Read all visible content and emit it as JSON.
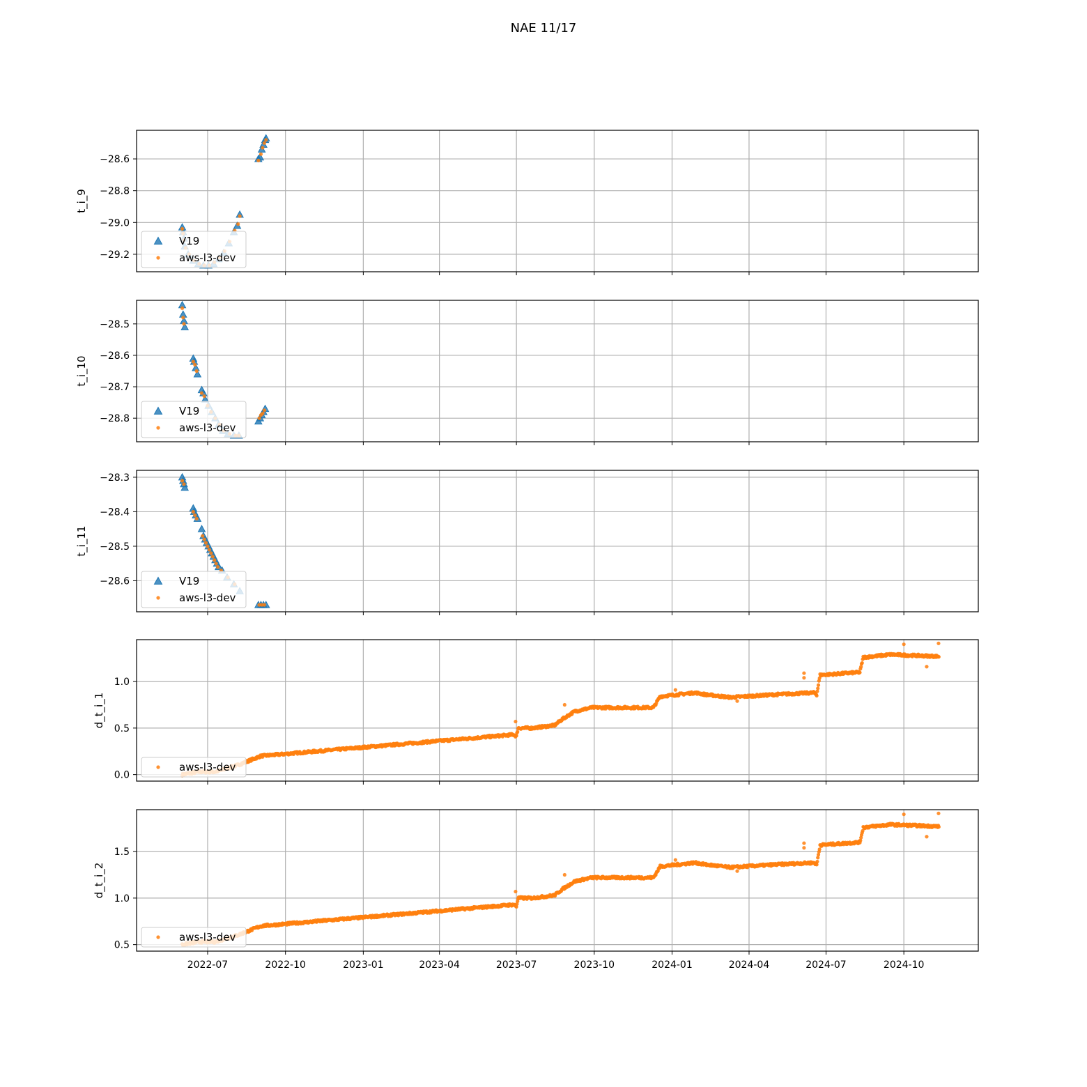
{
  "figure_title": "NAE 11/17",
  "colors": {
    "v19": "#1f77b4",
    "dev": "#ff7f0e",
    "grid": "#b0b0b0"
  },
  "chart_data": [
    {
      "type": "scatter",
      "ylabel": "t_i_9",
      "ylim": [
        -29.31,
        -28.42
      ],
      "yticks": [
        -29.2,
        -29.0,
        -28.8,
        -28.6
      ],
      "ytick_labels": [
        "−29.2",
        "−29.0",
        "−28.8",
        "−28.6"
      ],
      "legend": [
        "V19",
        "aws-l3-dev"
      ],
      "legend_loc": "lower left",
      "series": [
        {
          "name": "V19",
          "marker": "triangle",
          "points": [
            [
              "2022-06-01",
              -29.03
            ],
            [
              "2022-06-02",
              -29.06
            ],
            [
              "2022-06-03",
              -29.1
            ],
            [
              "2022-06-04",
              -29.15
            ],
            [
              "2022-06-08",
              -29.2
            ],
            [
              "2022-06-14",
              -29.24
            ],
            [
              "2022-06-20",
              -29.26
            ],
            [
              "2022-06-26",
              -29.27
            ],
            [
              "2022-07-02",
              -29.27
            ],
            [
              "2022-07-08",
              -29.26
            ],
            [
              "2022-07-14",
              -29.23
            ],
            [
              "2022-07-20",
              -29.19
            ],
            [
              "2022-07-26",
              -29.13
            ],
            [
              "2022-08-01",
              -29.06
            ],
            [
              "2022-08-05",
              -29.02
            ],
            [
              "2022-08-08",
              -28.95
            ],
            [
              "2022-08-30",
              -28.6
            ],
            [
              "2022-09-01",
              -28.59
            ],
            [
              "2022-09-03",
              -28.54
            ],
            [
              "2022-09-05",
              -28.51
            ],
            [
              "2022-09-07",
              -28.48
            ],
            [
              "2022-09-08",
              -28.47
            ]
          ]
        },
        {
          "name": "aws-l3-dev",
          "marker": "dot",
          "points": [
            [
              "2022-06-01",
              -29.04
            ],
            [
              "2022-06-02",
              -29.07
            ],
            [
              "2022-06-03",
              -29.11
            ],
            [
              "2022-06-05",
              -29.16
            ],
            [
              "2022-06-09",
              -29.2
            ],
            [
              "2022-06-15",
              -29.24
            ],
            [
              "2022-06-21",
              -29.26
            ],
            [
              "2022-06-27",
              -29.27
            ],
            [
              "2022-07-03",
              -29.27
            ],
            [
              "2022-07-09",
              -29.25
            ],
            [
              "2022-07-15",
              -29.22
            ],
            [
              "2022-07-21",
              -29.18
            ],
            [
              "2022-07-27",
              -29.12
            ],
            [
              "2022-08-02",
              -29.05
            ],
            [
              "2022-08-06",
              -29.01
            ],
            [
              "2022-08-08",
              -28.96
            ],
            [
              "2022-08-30",
              -28.61
            ],
            [
              "2022-09-02",
              -28.57
            ],
            [
              "2022-09-04",
              -28.53
            ],
            [
              "2022-09-06",
              -28.5
            ],
            [
              "2022-09-08",
              -28.48
            ]
          ]
        }
      ]
    },
    {
      "type": "scatter",
      "ylabel": "t_i_10",
      "ylim": [
        -28.875,
        -28.425
      ],
      "yticks": [
        -28.8,
        -28.7,
        -28.6,
        -28.5
      ],
      "ytick_labels": [
        "−28.8",
        "−28.7",
        "−28.6",
        "−28.5"
      ],
      "legend": [
        "V19",
        "aws-l3-dev"
      ],
      "legend_loc": "lower left",
      "series": [
        {
          "name": "V19",
          "marker": "triangle",
          "points": [
            [
              "2022-06-01",
              -28.44
            ],
            [
              "2022-06-02",
              -28.47
            ],
            [
              "2022-06-03",
              -28.49
            ],
            [
              "2022-06-04",
              -28.51
            ],
            [
              "2022-06-14",
              -28.61
            ],
            [
              "2022-06-15",
              -28.62
            ],
            [
              "2022-06-17",
              -28.64
            ],
            [
              "2022-06-19",
              -28.66
            ],
            [
              "2022-06-24",
              -28.71
            ],
            [
              "2022-06-26",
              -28.72
            ],
            [
              "2022-06-28",
              -28.74
            ],
            [
              "2022-07-02",
              -28.76
            ],
            [
              "2022-07-06",
              -28.78
            ],
            [
              "2022-07-10",
              -28.8
            ],
            [
              "2022-07-14",
              -28.82
            ],
            [
              "2022-07-19",
              -28.84
            ],
            [
              "2022-07-25",
              -28.85
            ],
            [
              "2022-08-01",
              -28.855
            ],
            [
              "2022-08-07",
              -28.855
            ],
            [
              "2022-08-30",
              -28.81
            ],
            [
              "2022-09-01",
              -28.8
            ],
            [
              "2022-09-03",
              -28.79
            ],
            [
              "2022-09-05",
              -28.78
            ],
            [
              "2022-09-07",
              -28.77
            ]
          ]
        },
        {
          "name": "aws-l3-dev",
          "marker": "dot",
          "points": [
            [
              "2022-06-01",
              -28.45
            ],
            [
              "2022-06-02",
              -28.48
            ],
            [
              "2022-06-03",
              -28.5
            ],
            [
              "2022-06-14",
              -28.62
            ],
            [
              "2022-06-16",
              -28.63
            ],
            [
              "2022-06-18",
              -28.65
            ],
            [
              "2022-06-24",
              -28.72
            ],
            [
              "2022-06-27",
              -28.73
            ],
            [
              "2022-07-01",
              -28.76
            ],
            [
              "2022-07-05",
              -28.78
            ],
            [
              "2022-07-10",
              -28.8
            ],
            [
              "2022-07-15",
              -28.82
            ],
            [
              "2022-07-20",
              -28.84
            ],
            [
              "2022-07-27",
              -28.85
            ],
            [
              "2022-08-03",
              -28.855
            ],
            [
              "2022-08-07",
              -28.855
            ],
            [
              "2022-08-31",
              -28.8
            ],
            [
              "2022-09-02",
              -28.79
            ],
            [
              "2022-09-04",
              -28.785
            ],
            [
              "2022-09-06",
              -28.775
            ]
          ]
        }
      ]
    },
    {
      "type": "scatter",
      "ylabel": "t_i_11",
      "ylim": [
        -28.69,
        -28.28
      ],
      "yticks": [
        -28.6,
        -28.5,
        -28.4,
        -28.3
      ],
      "ytick_labels": [
        "−28.6",
        "−28.5",
        "−28.4",
        "−28.3"
      ],
      "legend": [
        "V19",
        "aws-l3-dev"
      ],
      "legend_loc": "lower left",
      "series": [
        {
          "name": "V19",
          "marker": "triangle",
          "points": [
            [
              "2022-06-01",
              -28.3
            ],
            [
              "2022-06-02",
              -28.31
            ],
            [
              "2022-06-03",
              -28.32
            ],
            [
              "2022-06-04",
              -28.33
            ],
            [
              "2022-06-14",
              -28.39
            ],
            [
              "2022-06-15",
              -28.4
            ],
            [
              "2022-06-17",
              -28.41
            ],
            [
              "2022-06-19",
              -28.42
            ],
            [
              "2022-06-24",
              -28.45
            ],
            [
              "2022-06-26",
              -28.47
            ],
            [
              "2022-06-28",
              -28.48
            ],
            [
              "2022-06-30",
              -28.49
            ],
            [
              "2022-07-02",
              -28.5
            ],
            [
              "2022-07-04",
              -28.51
            ],
            [
              "2022-07-06",
              -28.52
            ],
            [
              "2022-07-08",
              -28.53
            ],
            [
              "2022-07-10",
              -28.54
            ],
            [
              "2022-07-12",
              -28.55
            ],
            [
              "2022-07-14",
              -28.56
            ],
            [
              "2022-07-18",
              -28.57
            ],
            [
              "2022-07-24",
              -28.59
            ],
            [
              "2022-08-01",
              -28.61
            ],
            [
              "2022-08-08",
              -28.63
            ],
            [
              "2022-08-30",
              -28.67
            ],
            [
              "2022-09-02",
              -28.67
            ],
            [
              "2022-09-05",
              -28.67
            ],
            [
              "2022-09-08",
              -28.67
            ]
          ]
        },
        {
          "name": "aws-l3-dev",
          "marker": "dot",
          "points": [
            [
              "2022-06-01",
              -28.31
            ],
            [
              "2022-06-03",
              -28.32
            ],
            [
              "2022-06-14",
              -28.4
            ],
            [
              "2022-06-16",
              -28.41
            ],
            [
              "2022-06-18",
              -28.42
            ],
            [
              "2022-06-25",
              -28.47
            ],
            [
              "2022-06-27",
              -28.48
            ],
            [
              "2022-06-29",
              -28.49
            ],
            [
              "2022-07-01",
              -28.5
            ],
            [
              "2022-07-03",
              -28.51
            ],
            [
              "2022-07-05",
              -28.52
            ],
            [
              "2022-07-07",
              -28.53
            ],
            [
              "2022-07-09",
              -28.54
            ],
            [
              "2022-07-11",
              -28.55
            ],
            [
              "2022-07-13",
              -28.56
            ],
            [
              "2022-07-17",
              -28.57
            ],
            [
              "2022-07-25",
              -28.59
            ],
            [
              "2022-08-02",
              -28.61
            ],
            [
              "2022-08-31",
              -28.67
            ],
            [
              "2022-09-03",
              -28.67
            ],
            [
              "2022-09-06",
              -28.67
            ]
          ]
        }
      ]
    },
    {
      "type": "scatter",
      "ylabel": "d_t_i_1",
      "ylim": [
        -0.07,
        1.45
      ],
      "yticks": [
        0.0,
        0.5,
        1.0
      ],
      "ytick_labels": [
        "0.0",
        "0.5",
        "1.0"
      ],
      "legend": [
        "aws-l3-dev"
      ],
      "legend_loc": "lower left",
      "series": [
        {
          "name": "aws-l3-dev",
          "marker": "dot",
          "trend": [
            [
              "2022-06-01",
              0.0
            ],
            [
              "2022-06-20",
              0.03
            ],
            [
              "2022-07-10",
              0.03
            ],
            [
              "2022-08-05",
              0.1
            ],
            [
              "2022-09-02",
              0.2
            ],
            [
              "2023-06-28",
              0.43
            ],
            [
              "2023-07-01",
              0.41
            ],
            [
              "2023-07-03",
              0.5
            ],
            [
              "2023-07-20",
              0.5
            ],
            [
              "2023-08-15",
              0.53
            ],
            [
              "2023-08-25",
              0.6
            ],
            [
              "2023-09-08",
              0.68
            ],
            [
              "2023-09-28",
              0.72
            ],
            [
              "2023-12-10",
              0.72
            ],
            [
              "2023-12-18",
              0.84
            ],
            [
              "2024-01-28",
              0.88
            ],
            [
              "2024-02-10",
              0.86
            ],
            [
              "2024-03-10",
              0.83
            ],
            [
              "2024-05-01",
              0.86
            ],
            [
              "2024-06-17",
              0.88
            ],
            [
              "2024-06-20",
              0.86
            ],
            [
              "2024-06-24",
              1.07
            ],
            [
              "2024-08-10",
              1.1
            ],
            [
              "2024-08-14",
              1.26
            ],
            [
              "2024-09-15",
              1.29
            ],
            [
              "2024-11-12",
              1.27
            ]
          ],
          "outliers": [
            [
              "2023-06-30",
              0.57
            ],
            [
              "2023-08-27",
              0.75
            ],
            [
              "2024-01-05",
              0.91
            ],
            [
              "2024-03-18",
              0.79
            ],
            [
              "2024-06-05",
              1.09
            ],
            [
              "2024-06-05",
              1.04
            ],
            [
              "2024-10-01",
              1.4
            ],
            [
              "2024-10-28",
              1.16
            ],
            [
              "2024-11-11",
              1.41
            ]
          ]
        }
      ]
    },
    {
      "type": "scatter",
      "ylabel": "d_t_i_2",
      "ylim": [
        0.43,
        1.95
      ],
      "yticks": [
        0.5,
        1.0,
        1.5
      ],
      "ytick_labels": [
        "0.5",
        "1.0",
        "1.5"
      ],
      "legend": [
        "aws-l3-dev"
      ],
      "legend_loc": "lower left",
      "series": [
        {
          "name": "aws-l3-dev",
          "marker": "dot",
          "trend": [
            [
              "2022-06-01",
              0.5
            ],
            [
              "2022-06-20",
              0.53
            ],
            [
              "2022-07-10",
              0.53
            ],
            [
              "2022-08-05",
              0.6
            ],
            [
              "2022-09-02",
              0.7
            ],
            [
              "2023-06-28",
              0.93
            ],
            [
              "2023-07-01",
              0.91
            ],
            [
              "2023-07-03",
              1.0
            ],
            [
              "2023-07-20",
              1.0
            ],
            [
              "2023-08-15",
              1.03
            ],
            [
              "2023-08-25",
              1.1
            ],
            [
              "2023-09-08",
              1.18
            ],
            [
              "2023-09-28",
              1.22
            ],
            [
              "2023-12-10",
              1.22
            ],
            [
              "2023-12-18",
              1.34
            ],
            [
              "2024-01-28",
              1.38
            ],
            [
              "2024-02-10",
              1.36
            ],
            [
              "2024-03-10",
              1.33
            ],
            [
              "2024-05-01",
              1.36
            ],
            [
              "2024-06-17",
              1.38
            ],
            [
              "2024-06-20",
              1.36
            ],
            [
              "2024-06-24",
              1.57
            ],
            [
              "2024-08-10",
              1.6
            ],
            [
              "2024-08-14",
              1.76
            ],
            [
              "2024-09-15",
              1.79
            ],
            [
              "2024-11-12",
              1.77
            ]
          ],
          "outliers": [
            [
              "2023-06-30",
              1.07
            ],
            [
              "2023-08-27",
              1.25
            ],
            [
              "2024-01-05",
              1.41
            ],
            [
              "2024-03-18",
              1.29
            ],
            [
              "2024-06-05",
              1.59
            ],
            [
              "2024-06-05",
              1.54
            ],
            [
              "2024-10-01",
              1.9
            ],
            [
              "2024-10-28",
              1.66
            ],
            [
              "2024-11-11",
              1.91
            ]
          ]
        }
      ]
    }
  ],
  "x_axis": {
    "xlim": [
      "2022-04-08",
      "2024-12-28"
    ],
    "tick_dates": [
      "2022-07-01",
      "2022-10-01",
      "2023-01-01",
      "2023-04-01",
      "2023-07-01",
      "2023-10-01",
      "2024-01-01",
      "2024-04-01",
      "2024-07-01",
      "2024-10-01"
    ],
    "tick_labels": [
      "2022-07",
      "2022-10",
      "2023-01",
      "2023-04",
      "2023-07",
      "2023-10",
      "2024-01",
      "2024-04",
      "2024-07",
      "2024-10"
    ],
    "grid": true
  }
}
